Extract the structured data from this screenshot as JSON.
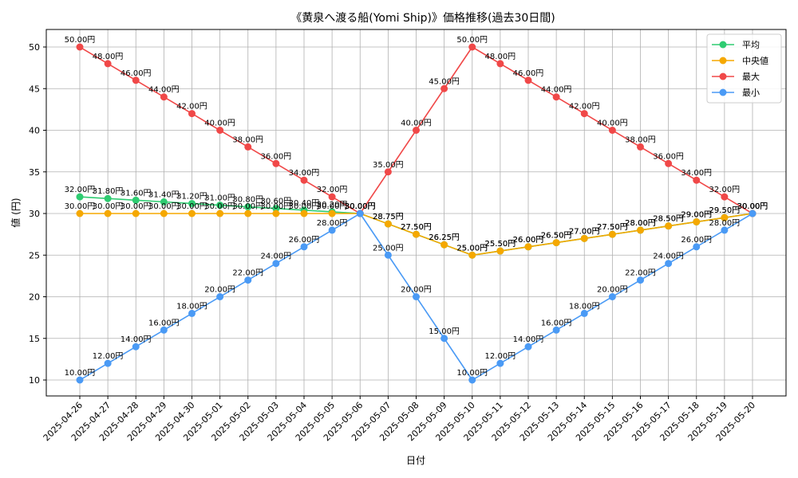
{
  "chart_data": {
    "type": "line",
    "title": "《黄泉へ渡る船(Yomi Ship)》価格推移(過去30日間)",
    "xlabel": "日付",
    "ylabel": "値 (円)",
    "ylim": [
      8,
      52
    ],
    "yticks": [
      10,
      15,
      20,
      25,
      30,
      35,
      40,
      45,
      50
    ],
    "grid": true,
    "legend_position": "top-right",
    "label_suffix": "円",
    "categories": [
      "2025-04-26",
      "2025-04-27",
      "2025-04-28",
      "2025-04-29",
      "2025-04-30",
      "2025-05-01",
      "2025-05-02",
      "2025-05-03",
      "2025-05-04",
      "2025-05-05",
      "2025-05-06",
      "2025-05-07",
      "2025-05-08",
      "2025-05-09",
      "2025-05-10",
      "2025-05-11",
      "2025-05-12",
      "2025-05-13",
      "2025-05-14",
      "2025-05-15",
      "2025-05-16",
      "2025-05-17",
      "2025-05-18",
      "2025-05-19",
      "2025-05-20"
    ],
    "series": [
      {
        "name": "平均",
        "color": "#2ecc71",
        "values": [
          32.0,
          31.8,
          31.6,
          31.4,
          31.2,
          31.0,
          30.8,
          30.6,
          30.4,
          30.2,
          30.0,
          28.75,
          27.5,
          26.25,
          25.0,
          25.5,
          26.0,
          26.5,
          27.0,
          27.5,
          28.0,
          28.5,
          29.0,
          29.5,
          30.0
        ]
      },
      {
        "name": "中央値",
        "color": "#f5a800",
        "values": [
          30,
          30,
          30,
          30,
          30,
          30,
          30,
          30,
          30,
          30,
          30,
          28.75,
          27.5,
          26.25,
          25.0,
          25.5,
          26.0,
          26.5,
          27.0,
          27.5,
          28.0,
          28.5,
          29.0,
          29.5,
          30.0
        ]
      },
      {
        "name": "最大",
        "color": "#f04848",
        "values": [
          50,
          48,
          46,
          44,
          42,
          40,
          38,
          36,
          34,
          32,
          30,
          35,
          40,
          45,
          50,
          48,
          46,
          44,
          42,
          40,
          38,
          36,
          34,
          32,
          30
        ]
      },
      {
        "name": "最小",
        "color": "#4a9af5",
        "values": [
          10,
          12,
          14,
          16,
          18,
          20,
          22,
          24,
          26,
          28,
          30,
          25,
          20,
          15,
          10,
          12,
          14,
          16,
          18,
          20,
          22,
          24,
          26,
          28,
          30
        ]
      }
    ]
  }
}
